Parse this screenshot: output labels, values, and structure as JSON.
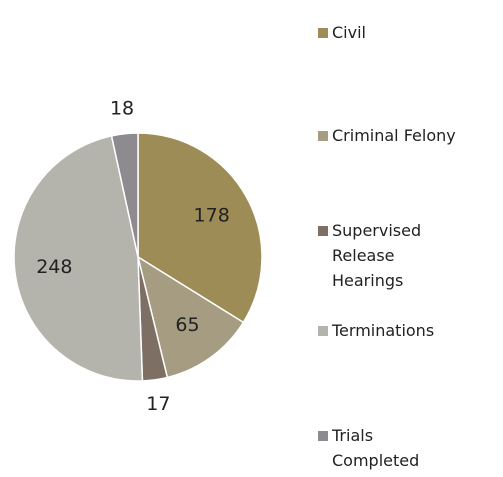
{
  "chart_data": {
    "type": "pie",
    "categories": [
      "Civil",
      "Criminal Felony",
      "Supervised Release Hearings",
      "Terminations",
      "Trials Completed"
    ],
    "values": [
      178,
      65,
      17,
      248,
      18
    ],
    "colors": [
      "#9e8c57",
      "#a59c81",
      "#7e6f65",
      "#b4b4ac",
      "#8d8a90"
    ]
  }
}
